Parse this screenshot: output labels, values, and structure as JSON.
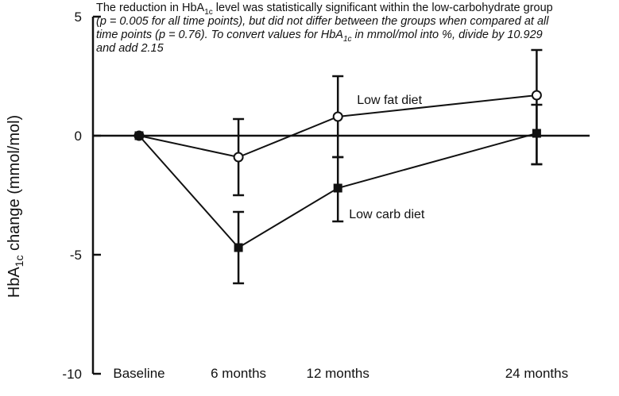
{
  "note": {
    "line1_pre": "The reduction in HbA",
    "line1_sub": "1c",
    "line1_post": " level was statistically significant within the low-carbohydrate group",
    "line2": "(p = 0.005 for all time points), but did not differ between the groups when compared at all",
    "line3_pre": "time points (p = 0.76). To convert values for HbA",
    "line3_sub": "1c",
    "line3_post": " in mmol/mol into %, divide by 10.929",
    "line4": "and add 2.15"
  },
  "ylabel": {
    "pre": "HbA",
    "sub": "1c",
    "post": " change (mmol/mol)"
  },
  "chart_data": {
    "type": "line",
    "categories": [
      "Baseline",
      "6 months",
      "12 months",
      "24 months"
    ],
    "x_positions_months": [
      0,
      6,
      12,
      24
    ],
    "ylim": [
      -10,
      5
    ],
    "yticks": [
      "5",
      "0",
      "-5",
      "-10"
    ],
    "ytick_values": [
      5,
      0,
      -5,
      -10
    ],
    "grid": false,
    "series": [
      {
        "name": "Low fat diet",
        "marker": "open-circle",
        "values": [
          0,
          -0.9,
          0.8,
          1.7
        ],
        "err_low": [
          0,
          -2.5,
          -0.9,
          -1.2
        ],
        "err_high": [
          0,
          0.7,
          2.5,
          3.6
        ]
      },
      {
        "name": "Low carb diet",
        "marker": "filled-square",
        "values": [
          0,
          -4.7,
          -2.2,
          0.1
        ],
        "err_low": [
          0,
          -6.2,
          -3.6,
          -1.2
        ],
        "err_high": [
          0,
          -3.2,
          -0.9,
          1.3
        ]
      }
    ]
  },
  "colors": {
    "ink": "#111111",
    "background": "#ffffff"
  }
}
